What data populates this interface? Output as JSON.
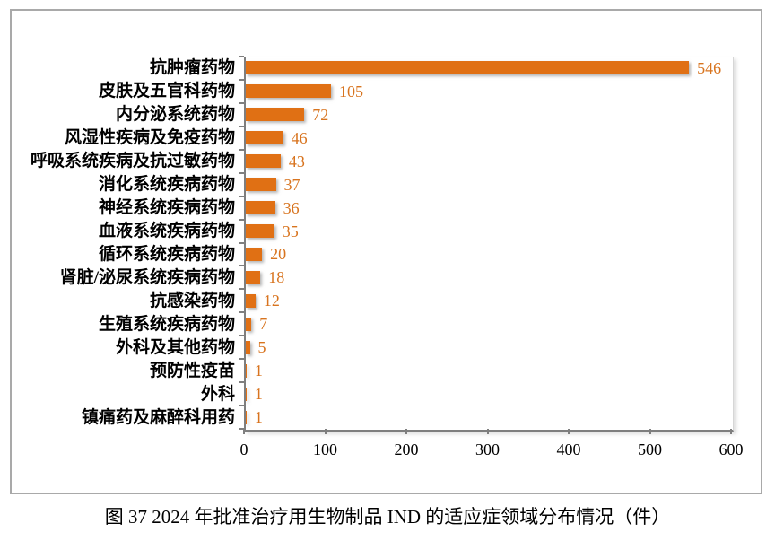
{
  "figure": {
    "caption": "图 37  2024 年批准治疗用生物制品 IND 的适应症领域分布情况（件）"
  },
  "colors": {
    "bar": "#e07014",
    "value_label": "#d8741f",
    "axis_line": "#7f7f7f",
    "plot_border_light": "#d6d6d6",
    "frame_border": "#a9a9a9"
  },
  "chart_data": {
    "type": "bar",
    "orientation": "horizontal",
    "title": "",
    "xlabel": "",
    "ylabel": "",
    "categories": [
      "抗肿瘤药物",
      "皮肤及五官科药物",
      "内分泌系统药物",
      "风湿性疾病及免疫药物",
      "呼吸系统疾病及抗过敏药物",
      "消化系统疾病药物",
      "神经系统疾病药物",
      "血液系统疾病药物",
      "循环系统疾病药物",
      "肾脏/泌尿系统疾病药物",
      "抗感染药物",
      "生殖系统疾病药物",
      "外科及其他药物",
      "预防性疫苗",
      "外科",
      "镇痛药及麻醉科用药"
    ],
    "values": [
      546,
      105,
      72,
      46,
      43,
      37,
      36,
      35,
      20,
      18,
      12,
      7,
      5,
      1,
      1,
      1
    ],
    "xlim": [
      0,
      600
    ],
    "xticks": [
      0,
      100,
      200,
      300,
      400,
      500,
      600
    ],
    "grid": false,
    "legend": false,
    "data_labels": true
  }
}
